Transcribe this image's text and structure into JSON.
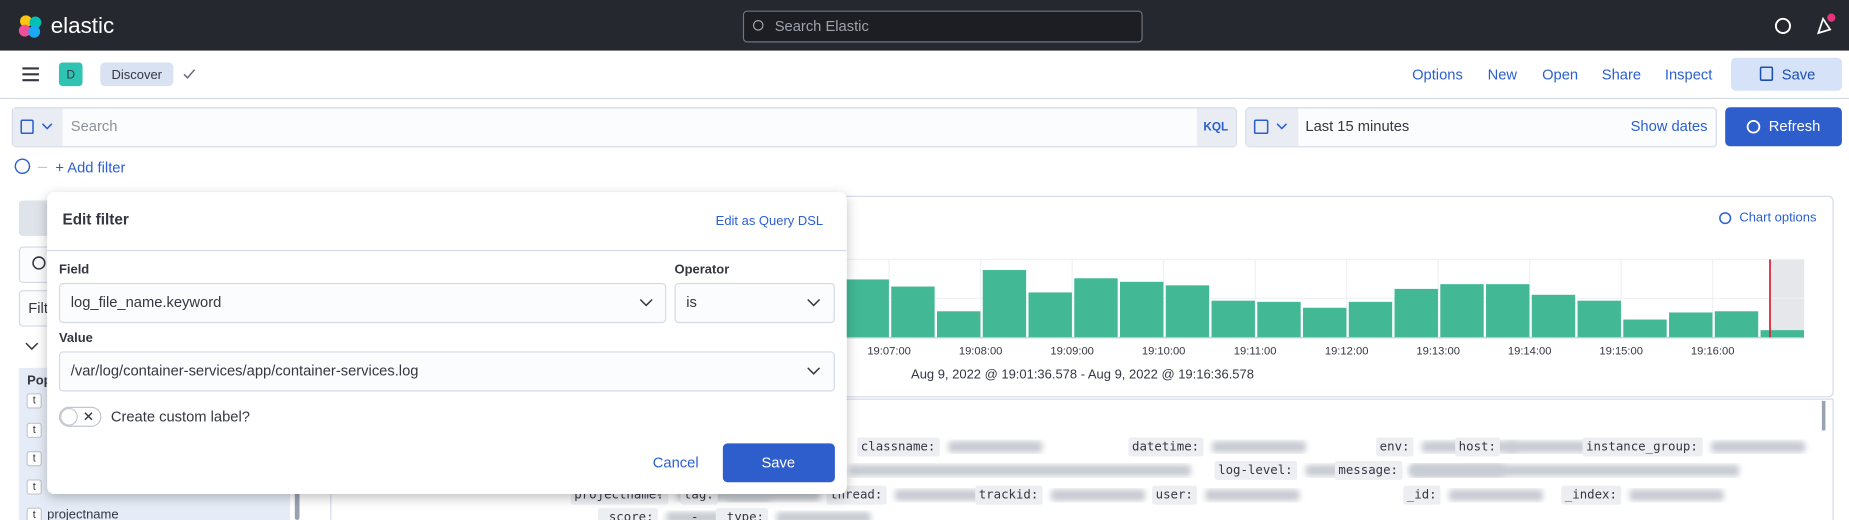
{
  "header": {
    "logo": "elastic",
    "search_placeholder": "Search Elastic"
  },
  "app_bar": {
    "space_initial": "D",
    "breadcrumb": "Discover",
    "menu": [
      "Options",
      "New",
      "Open",
      "Share",
      "Inspect"
    ],
    "save": "Save"
  },
  "query_bar": {
    "placeholder": "Search",
    "language": "KQL",
    "time_range": "Last 15 minutes",
    "show_dates": "Show dates",
    "refresh": "Refresh"
  },
  "filter_bar": {
    "add_filter": "+ Add filter"
  },
  "sidebar": {
    "search_partial": "Filt",
    "section_partial": "Pop",
    "field_type": "t",
    "field": "projectname"
  },
  "histogram": {
    "chart_options": "Chart options",
    "x_labels": [
      "19:07:00",
      "19:08:00",
      "19:09:00",
      "19:10:00",
      "19:11:00",
      "19:12:00",
      "19:13:00",
      "19:14:00",
      "19:15:00",
      "19:16:00"
    ],
    "values": [
      49,
      43,
      22,
      57,
      38,
      50,
      47,
      44,
      31,
      30,
      25,
      30,
      41,
      45,
      45,
      36,
      31,
      15,
      21,
      22,
      6
    ],
    "time_range": "Aug 9, 2022 @ 19:01:36.578 - Aug 9, 2022 @ 19:16:36.578"
  },
  "documents": {
    "rows": [
      [
        "classname:",
        "datetime:",
        "env:",
        "host:",
        "instance_group:"
      ],
      [
        "log-level:",
        "message:"
      ],
      [
        "projectname:",
        "-",
        "tag:",
        "thread:",
        "trackid:",
        "user:",
        "_id:",
        "_index:"
      ],
      [
        "_score:",
        "-",
        "_type:"
      ]
    ]
  },
  "edit_filter": {
    "title": "Edit filter",
    "query_dsl": "Edit as Query DSL",
    "field_label": "Field",
    "field_value": "log_file_name.keyword",
    "operator_label": "Operator",
    "operator_value": "is",
    "value_label": "Value",
    "value_value": "/var/log/container-services/app/container-services.log",
    "custom_label": "Create custom label?",
    "cancel": "Cancel",
    "save": "Save"
  }
}
